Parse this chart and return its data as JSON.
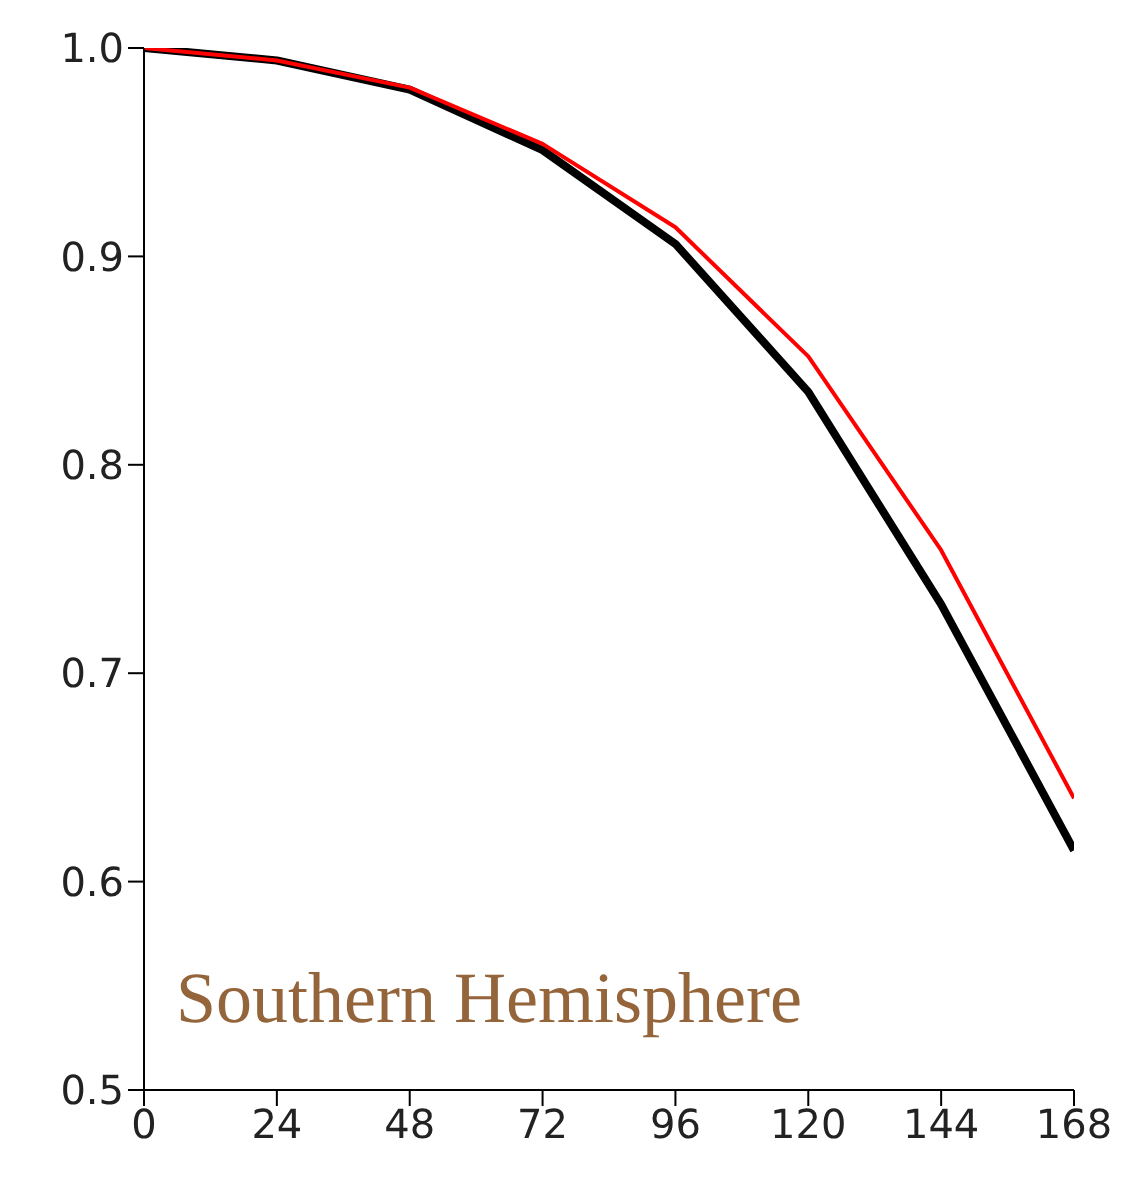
{
  "chart_data": {
    "type": "line",
    "x": [
      0,
      24,
      48,
      72,
      96,
      120,
      144,
      168
    ],
    "series": [
      {
        "color": "#000000",
        "values": [
          1.0,
          0.994,
          0.98,
          0.951,
          0.906,
          0.835,
          0.733,
          0.615
        ]
      },
      {
        "color": "#ff0000",
        "values": [
          1.0,
          0.994,
          0.981,
          0.954,
          0.914,
          0.852,
          0.759,
          0.64
        ]
      }
    ],
    "xlim": [
      0,
      168
    ],
    "xticks": [
      0,
      24,
      48,
      72,
      96,
      120,
      144,
      168
    ],
    "ylim": [
      0.5,
      1.0
    ],
    "yticks": [
      0.5,
      0.6,
      0.7,
      0.8,
      0.9,
      {
        "value": 1.0,
        "label": "1.0"
      }
    ],
    "grid": false,
    "marker": "none",
    "line_style": "solid",
    "annotations": [
      "Southern Hemisphere"
    ]
  }
}
